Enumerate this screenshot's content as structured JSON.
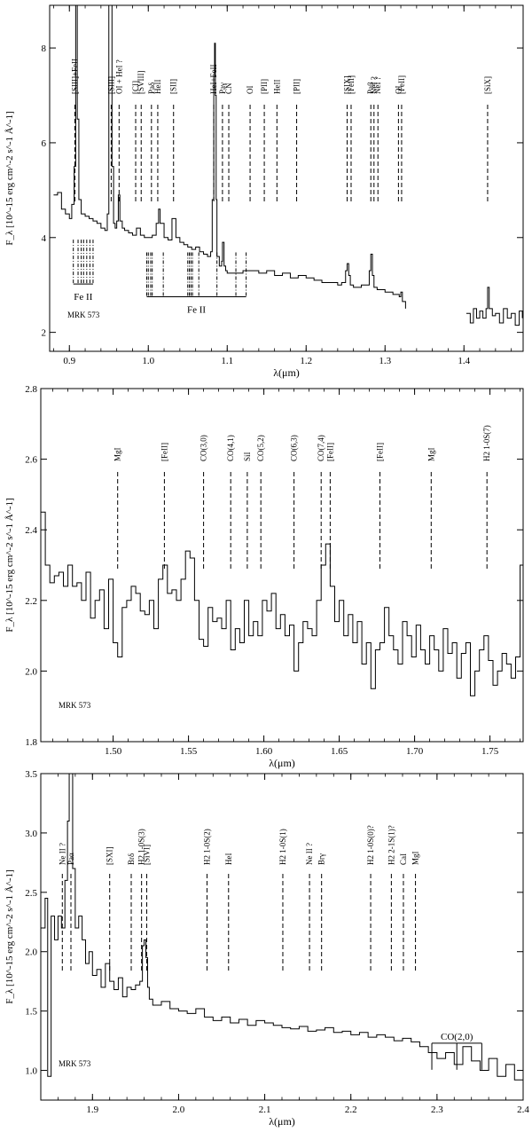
{
  "panels": [
    {
      "type": "line",
      "object_label": "MRK 573",
      "xlabel": "λ(μm)",
      "ylabel": "F_λ [10^-15 erg cm^-2 s^-1 Å^-1]",
      "xlim": [
        0.875,
        1.475
      ],
      "ylim": [
        1.6,
        8.9
      ],
      "xticks": [
        0.9,
        1.0,
        1.1,
        1.2,
        1.3,
        1.4
      ],
      "yticks": [
        2,
        4,
        6,
        8
      ],
      "series": [
        {
          "x": [
            0.88,
            0.885,
            0.89,
            0.895,
            0.9,
            0.903,
            0.906,
            0.908,
            0.91,
            0.912,
            0.915,
            0.92,
            0.925,
            0.93,
            0.935,
            0.94,
            0.945,
            0.948,
            0.95,
            0.952,
            0.954,
            0.956,
            0.958,
            0.96,
            0.962,
            0.964,
            0.967,
            0.97,
            0.975,
            0.98,
            0.985,
            0.99,
            0.995,
            1.0,
            1.005,
            1.01,
            1.013,
            1.015,
            1.02,
            1.025,
            1.03,
            1.035,
            1.04,
            1.045,
            1.05,
            1.055,
            1.06,
            1.065,
            1.07,
            1.075,
            1.079,
            1.081,
            1.083,
            1.084,
            1.085,
            1.086,
            1.087,
            1.09,
            1.093,
            1.094,
            1.096,
            1.098,
            1.1,
            1.11,
            1.12,
            1.13,
            1.14,
            1.15,
            1.16,
            1.17,
            1.18,
            1.19,
            1.2,
            1.21,
            1.22,
            1.23,
            1.24,
            1.245,
            1.25,
            1.252,
            1.254,
            1.256,
            1.26,
            1.27,
            1.275,
            1.28,
            1.282,
            1.284,
            1.286,
            1.29,
            1.3,
            1.31,
            1.318,
            1.32,
            1.322,
            1.326
          ],
          "y": [
            4.9,
            4.95,
            4.6,
            4.5,
            4.4,
            4.7,
            5.5,
            8.9,
            6.5,
            4.8,
            4.5,
            4.45,
            4.4,
            4.35,
            4.3,
            4.2,
            4.15,
            4.5,
            8.9,
            8.9,
            5.5,
            4.3,
            4.2,
            4.35,
            4.9,
            4.35,
            4.2,
            4.15,
            4.1,
            4.05,
            4.2,
            4.05,
            4.0,
            4.0,
            4.05,
            4.3,
            4.6,
            4.3,
            4.0,
            3.95,
            4.4,
            4.0,
            3.9,
            3.85,
            3.8,
            3.75,
            3.8,
            3.7,
            3.65,
            3.6,
            3.7,
            4.8,
            7.4,
            8.1,
            7.0,
            4.8,
            3.6,
            3.4,
            3.5,
            3.9,
            3.4,
            3.3,
            3.25,
            3.25,
            3.3,
            3.3,
            3.25,
            3.3,
            3.2,
            3.25,
            3.15,
            3.2,
            3.15,
            3.1,
            3.05,
            3.05,
            3.0,
            3.05,
            3.3,
            3.45,
            3.2,
            3.0,
            2.95,
            3.0,
            3.0,
            3.3,
            3.65,
            3.2,
            2.95,
            2.9,
            2.85,
            2.8,
            2.75,
            2.85,
            2.65,
            2.5
          ]
        },
        {
          "x": [
            1.403,
            1.408,
            1.412,
            1.416,
            1.42,
            1.424,
            1.428,
            1.43,
            1.432,
            1.436,
            1.44,
            1.445,
            1.45,
            1.455,
            1.46,
            1.465,
            1.47,
            1.474
          ],
          "y": [
            2.4,
            2.2,
            2.5,
            2.3,
            2.45,
            2.3,
            2.5,
            2.95,
            2.5,
            2.35,
            2.4,
            2.2,
            2.5,
            2.3,
            2.4,
            2.15,
            2.45,
            2.3
          ]
        }
      ],
      "lines": [
        {
          "label": "[SIII]+FeII",
          "x": 0.907
        },
        {
          "label": "[SIII]",
          "x": 0.953
        },
        {
          "label": "OI + HeI ?",
          "x": 0.963
        },
        {
          "label": "[CI]",
          "x": 0.984
        },
        {
          "label": "[SVIII]",
          "x": 0.991
        },
        {
          "label": "Paδ",
          "x": 1.004
        },
        {
          "label": "HeII",
          "x": 1.012
        },
        {
          "label": "[SII]",
          "x": 1.032
        },
        {
          "label": "HeI+FeII",
          "x": 1.083
        },
        {
          "label": "Paγ",
          "x": 1.094
        },
        {
          "label": "CN",
          "x": 1.102
        },
        {
          "label": "OI",
          "x": 1.129
        },
        {
          "label": "[PII]",
          "x": 1.147
        },
        {
          "label": "HeII",
          "x": 1.163
        },
        {
          "label": "[PII]",
          "x": 1.188
        },
        {
          "label": "[SIX]",
          "x": 1.252
        },
        {
          "label": "[FeII]",
          "x": 1.257
        },
        {
          "label": "Paβ",
          "x": 1.282
        },
        {
          "label": "NeI ?",
          "x": 1.286
        },
        {
          "label": "NeI ?",
          "x": 1.291
        },
        {
          "label": "OI",
          "x": 1.317
        },
        {
          "label": "[FeII]",
          "x": 1.321
        },
        {
          "label": "[SiX]",
          "x": 1.43
        }
      ],
      "brackets": [
        {
          "label": "Fe II",
          "x": [
            0.905,
            0.93
          ],
          "y_bottom": 3.02,
          "ticks": [
            0.905,
            0.911,
            0.915,
            0.918,
            0.922,
            0.926,
            0.93
          ]
        },
        {
          "label": "Fe II",
          "x": [
            0.998,
            1.124
          ],
          "y_bottom": 2.75,
          "ticks": [
            0.998,
            1.0,
            1.003,
            1.005,
            1.019,
            1.05,
            1.052,
            1.054,
            1.056,
            1.064,
            1.087,
            1.111,
            1.124
          ]
        }
      ]
    },
    {
      "type": "line",
      "object_label": "MRK 573",
      "xlabel": "λ(μm)",
      "ylabel": "F_λ [10^-15 erg cm^-2 s^-1 Å^-1]",
      "xlim": [
        1.452,
        1.772
      ],
      "ylim": [
        1.8,
        2.8
      ],
      "xticks": [
        1.5,
        1.55,
        1.6,
        1.65,
        1.7,
        1.75
      ],
      "yticks": [
        1.8,
        2.0,
        2.2,
        2.4,
        2.6,
        2.8
      ],
      "series": [
        {
          "x": [
            1.452,
            1.455,
            1.458,
            1.461,
            1.464,
            1.467,
            1.47,
            1.473,
            1.476,
            1.479,
            1.482,
            1.485,
            1.488,
            1.491,
            1.494,
            1.497,
            1.5,
            1.503,
            1.506,
            1.509,
            1.512,
            1.515,
            1.518,
            1.521,
            1.524,
            1.527,
            1.53,
            1.533,
            1.536,
            1.539,
            1.542,
            1.545,
            1.548,
            1.551,
            1.554,
            1.557,
            1.56,
            1.563,
            1.566,
            1.569,
            1.572,
            1.575,
            1.578,
            1.581,
            1.584,
            1.587,
            1.59,
            1.593,
            1.596,
            1.599,
            1.602,
            1.605,
            1.608,
            1.611,
            1.614,
            1.617,
            1.62,
            1.623,
            1.626,
            1.629,
            1.632,
            1.635,
            1.638,
            1.641,
            1.644,
            1.647,
            1.65,
            1.653,
            1.656,
            1.659,
            1.662,
            1.665,
            1.668,
            1.671,
            1.674,
            1.677,
            1.68,
            1.683,
            1.686,
            1.689,
            1.692,
            1.695,
            1.698,
            1.701,
            1.704,
            1.707,
            1.71,
            1.713,
            1.716,
            1.719,
            1.722,
            1.725,
            1.728,
            1.731,
            1.734,
            1.737,
            1.74,
            1.743,
            1.746,
            1.749,
            1.752,
            1.755,
            1.758,
            1.761,
            1.764,
            1.767,
            1.77,
            1.772
          ],
          "y": [
            2.45,
            2.3,
            2.25,
            2.27,
            2.28,
            2.24,
            2.3,
            2.24,
            2.25,
            2.2,
            2.28,
            2.15,
            2.2,
            2.23,
            2.12,
            2.26,
            2.08,
            2.04,
            2.18,
            2.2,
            2.24,
            2.22,
            2.17,
            2.16,
            2.2,
            2.12,
            2.26,
            2.3,
            2.22,
            2.23,
            2.2,
            2.26,
            2.34,
            2.32,
            2.2,
            2.09,
            2.07,
            2.18,
            2.14,
            2.15,
            2.12,
            2.2,
            2.06,
            2.12,
            2.08,
            2.2,
            2.1,
            2.14,
            2.1,
            2.2,
            2.17,
            2.22,
            2.12,
            2.16,
            2.1,
            2.13,
            2.0,
            2.08,
            2.14,
            2.12,
            2.1,
            2.2,
            2.3,
            2.36,
            2.24,
            2.14,
            2.2,
            2.1,
            2.16,
            2.08,
            2.14,
            2.02,
            2.08,
            1.95,
            2.06,
            2.08,
            2.18,
            2.1,
            2.06,
            2.02,
            2.14,
            2.1,
            2.04,
            2.13,
            2.06,
            2.02,
            2.1,
            2.06,
            2.0,
            2.12,
            2.05,
            2.08,
            1.98,
            2.05,
            2.08,
            1.93,
            2.0,
            2.06,
            2.1,
            2.03,
            1.96,
            2.0,
            2.05,
            2.02,
            1.98,
            2.04,
            2.3,
            2.1
          ]
        }
      ],
      "lines": [
        {
          "label": "MgI",
          "x": 1.503
        },
        {
          "label": "[FeII]",
          "x": 1.534
        },
        {
          "label": "CO(3,0)",
          "x": 1.56
        },
        {
          "label": "CO(4,1)",
          "x": 1.578
        },
        {
          "label": "SiI",
          "x": 1.589
        },
        {
          "label": "CO(5,2)",
          "x": 1.598
        },
        {
          "label": "CO(6,3)",
          "x": 1.62
        },
        {
          "label": "CO(7,4)",
          "x": 1.638
        },
        {
          "label": "[FeII]",
          "x": 1.644
        },
        {
          "label": "[FeII]",
          "x": 1.677
        },
        {
          "label": "MgI",
          "x": 1.711
        },
        {
          "label": "H2 1-0S(7)",
          "x": 1.748
        }
      ],
      "brackets": []
    },
    {
      "type": "line",
      "object_label": "MRK 573",
      "xlabel": "λ(μm)",
      "ylabel": "F_λ [10^-15 erg cm^-2 s^-1 Å^-1]",
      "xlim": [
        1.84,
        2.4
      ],
      "ylim": [
        0.75,
        3.5
      ],
      "xticks": [
        1.9,
        2.0,
        2.1,
        2.2,
        2.3,
        2.4
      ],
      "yticks": [
        1.0,
        1.5,
        2.0,
        2.5,
        3.0,
        3.5
      ],
      "series": [
        {
          "x": [
            1.84,
            1.845,
            1.848,
            1.852,
            1.856,
            1.86,
            1.864,
            1.868,
            1.871,
            1.873,
            1.875,
            1.877,
            1.88,
            1.884,
            1.888,
            1.892,
            1.896,
            1.9,
            1.905,
            1.91,
            1.915,
            1.92,
            1.925,
            1.93,
            1.935,
            1.94,
            1.945,
            1.95,
            1.955,
            1.958,
            1.96,
            1.962,
            1.964,
            1.966,
            1.97,
            1.98,
            1.99,
            2.0,
            2.01,
            2.02,
            2.03,
            2.04,
            2.05,
            2.06,
            2.07,
            2.08,
            2.09,
            2.1,
            2.11,
            2.12,
            2.13,
            2.14,
            2.15,
            2.16,
            2.17,
            2.18,
            2.19,
            2.2,
            2.21,
            2.22,
            2.23,
            2.24,
            2.25,
            2.26,
            2.27,
            2.28,
            2.29,
            2.3,
            2.31,
            2.32,
            2.33,
            2.34,
            2.35,
            2.36,
            2.37,
            2.38,
            2.39,
            2.4
          ],
          "y": [
            2.2,
            2.45,
            0.95,
            2.3,
            2.1,
            2.3,
            2.2,
            2.6,
            3.1,
            3.5,
            3.5,
            2.7,
            2.2,
            2.3,
            2.1,
            1.9,
            2.0,
            1.8,
            1.85,
            1.7,
            1.9,
            1.75,
            1.68,
            1.78,
            1.62,
            1.7,
            1.68,
            1.72,
            1.75,
            2.05,
            2.1,
            1.95,
            1.7,
            1.6,
            1.55,
            1.58,
            1.52,
            1.5,
            1.48,
            1.52,
            1.45,
            1.42,
            1.45,
            1.4,
            1.43,
            1.38,
            1.42,
            1.4,
            1.38,
            1.36,
            1.35,
            1.37,
            1.33,
            1.34,
            1.36,
            1.32,
            1.33,
            1.3,
            1.32,
            1.28,
            1.3,
            1.28,
            1.25,
            1.27,
            1.24,
            1.2,
            1.15,
            1.1,
            1.15,
            1.05,
            1.2,
            1.08,
            1.0,
            1.1,
            0.95,
            1.05,
            0.92,
            1.05
          ]
        }
      ],
      "lines": [
        {
          "label": "Ne II ?",
          "x": 1.865
        },
        {
          "label": "Paα",
          "x": 1.875
        },
        {
          "label": "[SXI]",
          "x": 1.92
        },
        {
          "label": "Brδ",
          "x": 1.945
        },
        {
          "label": "H2 1-0S(3)",
          "x": 1.957
        },
        {
          "label": "[SiVI]",
          "x": 1.963
        },
        {
          "label": "H2 1-0S(2)",
          "x": 2.033
        },
        {
          "label": "HeI",
          "x": 2.058
        },
        {
          "label": "H2 1-0S(1)",
          "x": 2.121
        },
        {
          "label": "Ne II ?",
          "x": 2.152
        },
        {
          "label": "Brγ",
          "x": 2.166
        },
        {
          "label": "H2 1-0S(0)?",
          "x": 2.223
        },
        {
          "label": "H2 2-1S(1)?",
          "x": 2.247
        },
        {
          "label": "CaI",
          "x": 2.261
        },
        {
          "label": "MgI",
          "x": 2.275
        }
      ],
      "brackets": [
        {
          "label": "CO(2,0)",
          "x": [
            2.294,
            2.352
          ],
          "y_bottom": 1.08,
          "ticks": [
            2.294,
            2.323,
            2.352
          ],
          "up": true
        }
      ]
    }
  ]
}
